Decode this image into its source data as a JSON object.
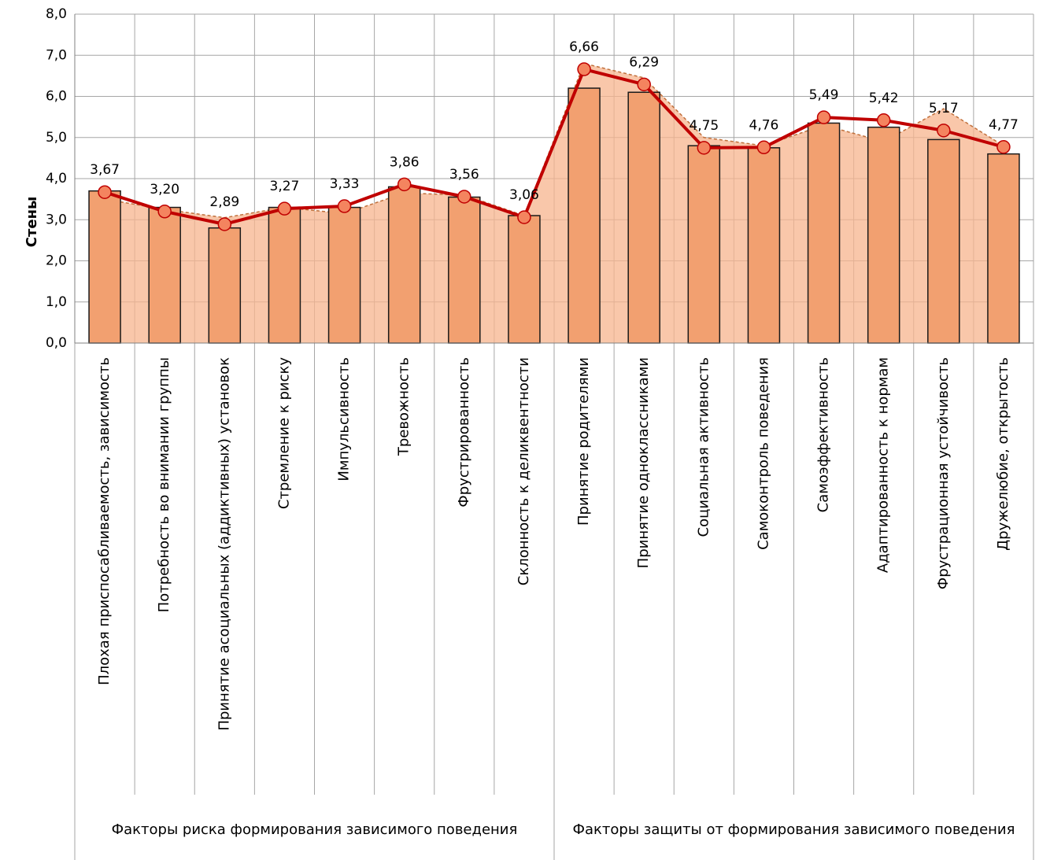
{
  "chart_data": {
    "type": "combo",
    "y_label": "Стены",
    "categories": [
      "Плохая приспосабливаемость, зависимость",
      "Потребность во внимании группы",
      "Принятие асоциальных (аддиктивных) установок",
      "Стремление к риску",
      "Импульсивность",
      "Тревожность",
      "Фрустрированность",
      "Склонность к деликвентности",
      "Принятие родителями",
      "Принятие одноклассниками",
      "Социальная активность",
      "Самоконтроль поведения",
      "Самоэффективность",
      "Адаптированность к нормам",
      "Фрустрационная устойчивость",
      "Дружелюбие, открытость"
    ],
    "groups": [
      "Факторы риска формирования зависимого поведения",
      "Факторы защиты от формирования зависимого поведения"
    ],
    "series": [
      {
        "type": "area",
        "color": "#f7b48e",
        "edge_color": "#c0703c",
        "values": [
          3.5,
          3.25,
          3.05,
          3.3,
          3.15,
          3.65,
          3.6,
          3.1,
          6.8,
          6.45,
          5.0,
          4.8,
          5.3,
          4.9,
          5.7,
          4.8
        ]
      },
      {
        "type": "bar",
        "color": "#f2a070",
        "edge_color": "#1a1a1a",
        "values": [
          3.7,
          3.3,
          2.8,
          3.3,
          3.3,
          3.8,
          3.55,
          3.1,
          6.2,
          6.1,
          4.8,
          4.75,
          5.35,
          5.25,
          4.95,
          4.6
        ]
      },
      {
        "type": "line",
        "color": "#c00000",
        "marker_color": "#f4845f",
        "values": [
          3.67,
          3.2,
          2.89,
          3.27,
          3.33,
          3.86,
          3.56,
          3.06,
          6.66,
          6.29,
          4.75,
          4.76,
          5.49,
          5.42,
          5.17,
          4.77
        ],
        "value_labels": [
          "3,67",
          "3,20",
          "2,89",
          "3,27",
          "3,33",
          "3,86",
          "3,56",
          "3,06",
          "6,66",
          "6,29",
          "4,75",
          "4,76",
          "5,49",
          "5,42",
          "5,17",
          "4,77"
        ]
      }
    ],
    "ylim": [
      0,
      8
    ],
    "yticks": [
      {
        "value": 0,
        "label": "0,0"
      },
      {
        "value": 1,
        "label": "1,0"
      },
      {
        "value": 2,
        "label": "2,0"
      },
      {
        "value": 3,
        "label": "3,0"
      },
      {
        "value": 4,
        "label": "4,0"
      },
      {
        "value": 5,
        "label": "5,0"
      },
      {
        "value": 6,
        "label": "6,0"
      },
      {
        "value": 7,
        "label": "7,0"
      },
      {
        "value": 8,
        "label": "8,0"
      }
    ],
    "grid": true
  }
}
